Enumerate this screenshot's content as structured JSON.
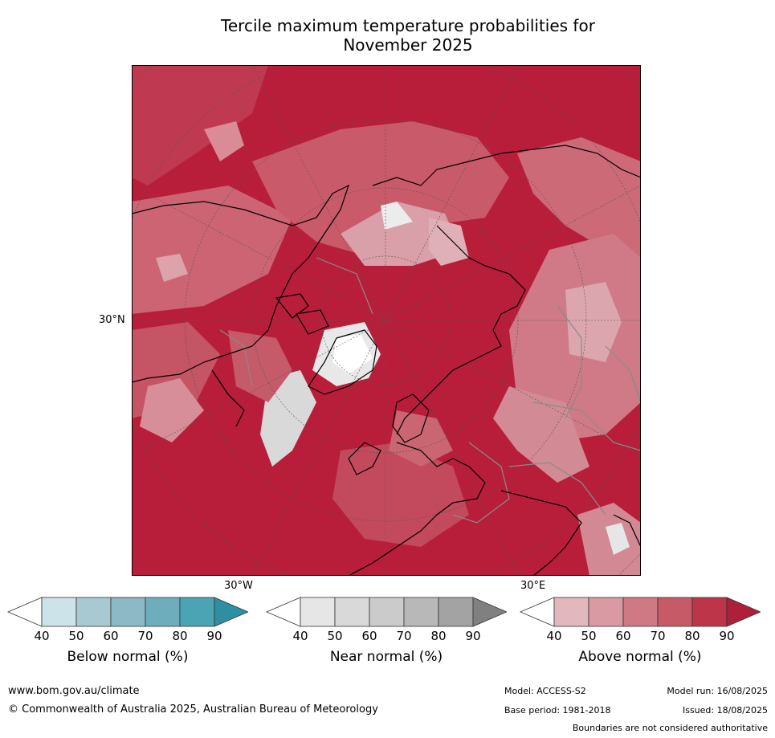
{
  "title": {
    "line1": "Tercile maximum temperature probabilities for",
    "line2": "November 2025"
  },
  "map": {
    "lat_label": "30°N",
    "lon_labels": {
      "west": "30°W",
      "east": "30°E"
    },
    "colors": {
      "ocean_base": "#b81e3a",
      "land_mid": "#c85566",
      "pale": "#dea6ae",
      "near_normal": "#e0e0e0",
      "coastline": "#000000",
      "borders": "#8a8a8a",
      "graticule": "#555555"
    }
  },
  "legends": [
    {
      "title": "Below normal (%)",
      "ticks": [
        "40",
        "50",
        "60",
        "70",
        "80",
        "90"
      ],
      "colors": [
        "#ffffff",
        "#cde3ea",
        "#a8c9d1",
        "#8cb9c5",
        "#6eaebc",
        "#4aa4b4",
        "#2e8fa3"
      ]
    },
    {
      "title": "Near normal (%)",
      "ticks": [
        "40",
        "50",
        "60",
        "70",
        "80",
        "90"
      ],
      "colors": [
        "#ffffff",
        "#e6e6e6",
        "#d9d9d9",
        "#cbcbcb",
        "#b8b8b8",
        "#a3a3a3",
        "#808080"
      ]
    },
    {
      "title": "Above normal (%)",
      "ticks": [
        "40",
        "50",
        "60",
        "70",
        "80",
        "90"
      ],
      "colors": [
        "#ffffff",
        "#e2b7bd",
        "#d99aa3",
        "#cf7984",
        "#c65a67",
        "#bc3549",
        "#ae1f39"
      ]
    }
  ],
  "footer": {
    "url": "www.bom.gov.au/climate",
    "copyright": "© Commonwealth of Australia 2025, Australian Bureau of Meteorology",
    "model": "Model: ACCESS-S2",
    "base_period": "Base period: 1981-2018",
    "model_run": "Model run: 16/08/2025",
    "issued": "Issued: 18/08/2025",
    "disclaimer": "Boundaries are not considered authoritative"
  }
}
